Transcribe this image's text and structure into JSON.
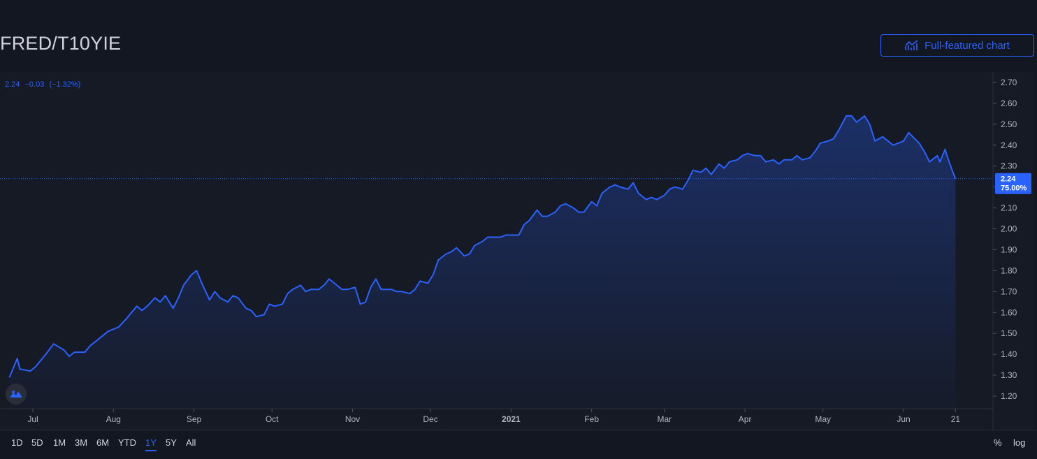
{
  "header": {
    "symbol": "FRED/T10YIE",
    "full_chart_label": "Full-featured chart"
  },
  "legend": {
    "last": "2.24",
    "change": "−0.03",
    "change_pct": "(−1.32%)"
  },
  "price_label": {
    "value": "2.24",
    "percent": "75.00%"
  },
  "bottom_bar": {
    "ranges": [
      "1D",
      "5D",
      "1M",
      "3M",
      "6M",
      "YTD",
      "1Y",
      "5Y",
      "All"
    ],
    "active_range": "1Y",
    "percent_toggle": "%",
    "log_toggle": "log"
  },
  "colors": {
    "line": "#2962ff",
    "background": "#131722",
    "pane": "#161a25",
    "text": "#d1d4dc",
    "axis_text": "#b2b5be"
  },
  "icons": [
    "chart-line-icon",
    "tradingview-logo-icon"
  ],
  "chart_data": {
    "type": "area",
    "title": "FRED/T10YIE",
    "ylim": [
      1.16,
      2.74
    ],
    "yticks": [
      "2.70",
      "2.60",
      "2.50",
      "2.40",
      "2.30",
      "2.20",
      "2.10",
      "2.00",
      "1.90",
      "1.80",
      "1.70",
      "1.60",
      "1.50",
      "1.40",
      "1.30",
      "1.20"
    ],
    "xticks": [
      {
        "label": "Jul",
        "date": "2020-07-01"
      },
      {
        "label": "Aug",
        "date": "2020-08-01"
      },
      {
        "label": "Sep",
        "date": "2020-09-01"
      },
      {
        "label": "Oct",
        "date": "2020-10-01"
      },
      {
        "label": "Nov",
        "date": "2020-11-01"
      },
      {
        "label": "Dec",
        "date": "2020-12-01"
      },
      {
        "label": "2021",
        "date": "2021-01-01"
      },
      {
        "label": "Feb",
        "date": "2021-02-01"
      },
      {
        "label": "Mar",
        "date": "2021-03-01"
      },
      {
        "label": "Apr",
        "date": "2021-04-01"
      },
      {
        "label": "May",
        "date": "2021-05-01"
      },
      {
        "label": "Jun",
        "date": "2021-06-01"
      },
      {
        "label": "21",
        "date": "2021-06-21"
      }
    ],
    "last_value": 2.24,
    "series": [
      {
        "values": [
          [
            "2020-06-22",
            1.29
          ],
          [
            "2020-06-25",
            1.38
          ],
          [
            "2020-06-26",
            1.33
          ],
          [
            "2020-06-30",
            1.32
          ],
          [
            "2020-07-02",
            1.34
          ],
          [
            "2020-07-06",
            1.4
          ],
          [
            "2020-07-09",
            1.45
          ],
          [
            "2020-07-13",
            1.42
          ],
          [
            "2020-07-15",
            1.39
          ],
          [
            "2020-07-17",
            1.41
          ],
          [
            "2020-07-21",
            1.41
          ],
          [
            "2020-07-23",
            1.44
          ],
          [
            "2020-07-27",
            1.48
          ],
          [
            "2020-07-30",
            1.51
          ],
          [
            "2020-08-03",
            1.53
          ],
          [
            "2020-08-06",
            1.57
          ],
          [
            "2020-08-10",
            1.63
          ],
          [
            "2020-08-12",
            1.61
          ],
          [
            "2020-08-14",
            1.63
          ],
          [
            "2020-08-17",
            1.67
          ],
          [
            "2020-08-19",
            1.65
          ],
          [
            "2020-08-21",
            1.68
          ],
          [
            "2020-08-24",
            1.62
          ],
          [
            "2020-08-26",
            1.67
          ],
          [
            "2020-08-28",
            1.73
          ],
          [
            "2020-08-31",
            1.78
          ],
          [
            "2020-09-02",
            1.8
          ],
          [
            "2020-09-04",
            1.74
          ],
          [
            "2020-09-07",
            1.66
          ],
          [
            "2020-09-09",
            1.7
          ],
          [
            "2020-09-11",
            1.67
          ],
          [
            "2020-09-14",
            1.65
          ],
          [
            "2020-09-16",
            1.68
          ],
          [
            "2020-09-18",
            1.67
          ],
          [
            "2020-09-21",
            1.62
          ],
          [
            "2020-09-23",
            1.61
          ],
          [
            "2020-09-25",
            1.58
          ],
          [
            "2020-09-28",
            1.59
          ],
          [
            "2020-09-30",
            1.64
          ],
          [
            "2020-10-02",
            1.63
          ],
          [
            "2020-10-05",
            1.64
          ],
          [
            "2020-10-07",
            1.69
          ],
          [
            "2020-10-09",
            1.71
          ],
          [
            "2020-10-12",
            1.73
          ],
          [
            "2020-10-14",
            1.7
          ],
          [
            "2020-10-16",
            1.71
          ],
          [
            "2020-10-19",
            1.71
          ],
          [
            "2020-10-21",
            1.73
          ],
          [
            "2020-10-23",
            1.76
          ],
          [
            "2020-10-26",
            1.73
          ],
          [
            "2020-10-28",
            1.71
          ],
          [
            "2020-10-30",
            1.71
          ],
          [
            "2020-11-02",
            1.72
          ],
          [
            "2020-11-04",
            1.64
          ],
          [
            "2020-11-06",
            1.65
          ],
          [
            "2020-11-08",
            1.72
          ],
          [
            "2020-11-10",
            1.76
          ],
          [
            "2020-11-12",
            1.71
          ],
          [
            "2020-11-16",
            1.71
          ],
          [
            "2020-11-18",
            1.7
          ],
          [
            "2020-11-20",
            1.7
          ],
          [
            "2020-11-23",
            1.69
          ],
          [
            "2020-11-25",
            1.71
          ],
          [
            "2020-11-27",
            1.75
          ],
          [
            "2020-11-30",
            1.74
          ],
          [
            "2020-12-02",
            1.78
          ],
          [
            "2020-12-04",
            1.85
          ],
          [
            "2020-12-07",
            1.88
          ],
          [
            "2020-12-09",
            1.89
          ],
          [
            "2020-12-11",
            1.91
          ],
          [
            "2020-12-14",
            1.87
          ],
          [
            "2020-12-16",
            1.88
          ],
          [
            "2020-12-18",
            1.92
          ],
          [
            "2020-12-21",
            1.94
          ],
          [
            "2020-12-23",
            1.96
          ],
          [
            "2020-12-28",
            1.96
          ],
          [
            "2020-12-30",
            1.97
          ],
          [
            "2021-01-04",
            1.97
          ],
          [
            "2021-01-06",
            2.02
          ],
          [
            "2021-01-08",
            2.04
          ],
          [
            "2021-01-11",
            2.09
          ],
          [
            "2021-01-13",
            2.06
          ],
          [
            "2021-01-15",
            2.06
          ],
          [
            "2021-01-18",
            2.08
          ],
          [
            "2021-01-20",
            2.11
          ],
          [
            "2021-01-22",
            2.12
          ],
          [
            "2021-01-25",
            2.1
          ],
          [
            "2021-01-27",
            2.08
          ],
          [
            "2021-01-29",
            2.08
          ],
          [
            "2021-02-01",
            2.13
          ],
          [
            "2021-02-03",
            2.11
          ],
          [
            "2021-02-05",
            2.17
          ],
          [
            "2021-02-08",
            2.2
          ],
          [
            "2021-02-10",
            2.21
          ],
          [
            "2021-02-12",
            2.2
          ],
          [
            "2021-02-15",
            2.19
          ],
          [
            "2021-02-17",
            2.22
          ],
          [
            "2021-02-19",
            2.17
          ],
          [
            "2021-02-22",
            2.14
          ],
          [
            "2021-02-24",
            2.15
          ],
          [
            "2021-02-26",
            2.14
          ],
          [
            "2021-03-01",
            2.16
          ],
          [
            "2021-03-03",
            2.19
          ],
          [
            "2021-03-05",
            2.2
          ],
          [
            "2021-03-08",
            2.19
          ],
          [
            "2021-03-10",
            2.23
          ],
          [
            "2021-03-12",
            2.28
          ],
          [
            "2021-03-15",
            2.27
          ],
          [
            "2021-03-17",
            2.29
          ],
          [
            "2021-03-19",
            2.26
          ],
          [
            "2021-03-22",
            2.31
          ],
          [
            "2021-03-24",
            2.29
          ],
          [
            "2021-03-26",
            2.32
          ],
          [
            "2021-03-29",
            2.33
          ],
          [
            "2021-03-31",
            2.35
          ],
          [
            "2021-04-02",
            2.36
          ],
          [
            "2021-04-05",
            2.35
          ],
          [
            "2021-04-07",
            2.35
          ],
          [
            "2021-04-09",
            2.32
          ],
          [
            "2021-04-12",
            2.33
          ],
          [
            "2021-04-14",
            2.31
          ],
          [
            "2021-04-16",
            2.33
          ],
          [
            "2021-04-19",
            2.33
          ],
          [
            "2021-04-21",
            2.35
          ],
          [
            "2021-04-23",
            2.33
          ],
          [
            "2021-04-26",
            2.34
          ],
          [
            "2021-04-28",
            2.37
          ],
          [
            "2021-04-30",
            2.41
          ],
          [
            "2021-05-03",
            2.42
          ],
          [
            "2021-05-05",
            2.43
          ],
          [
            "2021-05-07",
            2.47
          ],
          [
            "2021-05-10",
            2.54
          ],
          [
            "2021-05-12",
            2.54
          ],
          [
            "2021-05-14",
            2.51
          ],
          [
            "2021-05-17",
            2.54
          ],
          [
            "2021-05-19",
            2.5
          ],
          [
            "2021-05-21",
            2.42
          ],
          [
            "2021-05-24",
            2.44
          ],
          [
            "2021-05-26",
            2.42
          ],
          [
            "2021-05-28",
            2.4
          ],
          [
            "2021-06-01",
            2.42
          ],
          [
            "2021-06-03",
            2.46
          ],
          [
            "2021-06-07",
            2.41
          ],
          [
            "2021-06-09",
            2.37
          ],
          [
            "2021-06-11",
            2.32
          ],
          [
            "2021-06-14",
            2.35
          ],
          [
            "2021-06-15",
            2.32
          ],
          [
            "2021-06-17",
            2.38
          ],
          [
            "2021-06-18",
            2.34
          ],
          [
            "2021-06-20",
            2.27
          ],
          [
            "2021-06-21",
            2.24
          ]
        ]
      }
    ]
  }
}
